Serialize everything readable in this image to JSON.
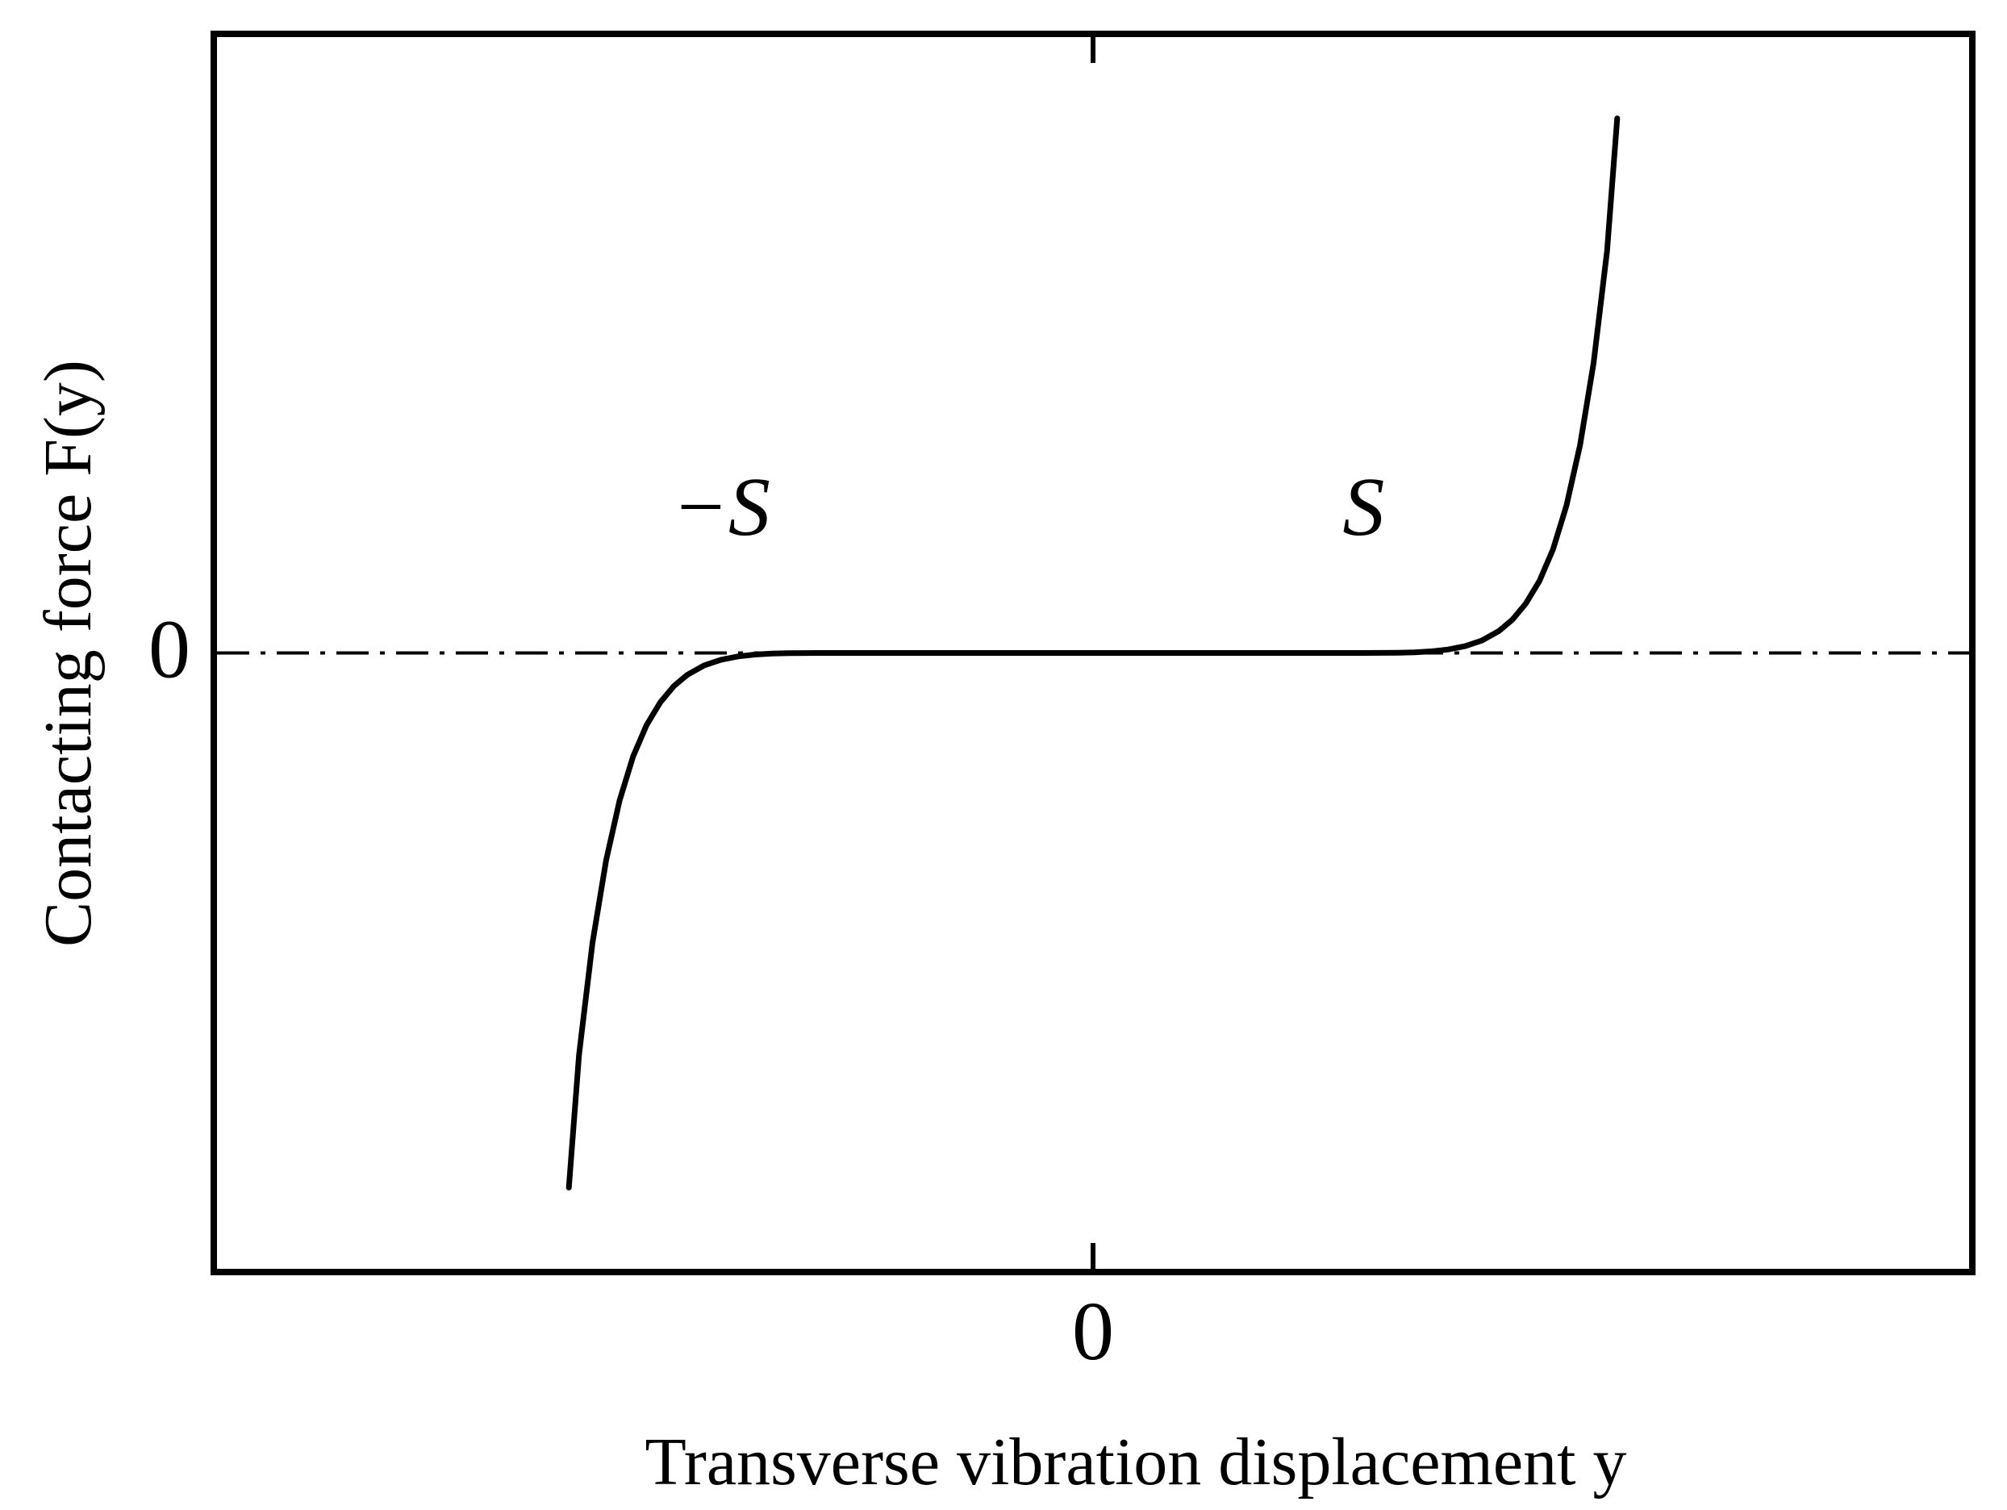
{
  "chart_data": {
    "type": "line",
    "title": "",
    "xlabel": "Transverse vibration displacement y",
    "ylabel": "Contacting force F(y)",
    "xlim": [
      -2.6,
      2.6
    ],
    "ylim": [
      -1.1,
      1.1
    ],
    "grid": false,
    "legend": "none",
    "x_ticks": [
      {
        "value": 0,
        "label": "0"
      }
    ],
    "y_ticks": [
      {
        "value": 0,
        "label": "0"
      }
    ],
    "reference_line": {
      "y": 0,
      "style": "dash-dot"
    },
    "annotations": [
      {
        "text": "−S",
        "x": -1.1,
        "y": 0.21
      },
      {
        "text": "S",
        "x": 0.8,
        "y": 0.21
      }
    ],
    "series": [
      {
        "x": [
          -1.55,
          -1.52,
          -1.48,
          -1.44,
          -1.4,
          -1.36,
          -1.32,
          -1.28,
          -1.24,
          -1.2,
          -1.15,
          -1.1,
          -1.05,
          -1.0,
          -0.95,
          -0.9,
          -0.85,
          -0.8,
          -0.75,
          -0.7,
          -0.65,
          -0.6,
          -0.5,
          -0.4,
          -0.3,
          -0.2,
          -0.1,
          0.0,
          0.1,
          0.2,
          0.3,
          0.4,
          0.5,
          0.6,
          0.65,
          0.7,
          0.75,
          0.8,
          0.85,
          0.9,
          0.95,
          1.0,
          1.05,
          1.1,
          1.15,
          1.2,
          1.24,
          1.28,
          1.32,
          1.36,
          1.4,
          1.44,
          1.48,
          1.52,
          1.55
        ],
        "y": [
          -0.95,
          -0.714,
          -0.515,
          -0.369,
          -0.262,
          -0.184,
          -0.128,
          -0.088,
          -0.059,
          -0.039,
          -0.022,
          -0.012,
          -0.0062,
          -0.0029,
          -0.0012,
          -0.0004,
          -0.00012,
          -3e-05,
          0,
          0,
          0,
          0,
          0,
          0,
          0,
          0,
          0,
          0,
          0,
          0,
          0,
          0,
          0,
          0,
          0,
          0,
          0,
          3e-05,
          0.00012,
          0.0004,
          0.0012,
          0.0029,
          0.0062,
          0.012,
          0.022,
          0.039,
          0.059,
          0.088,
          0.128,
          0.184,
          0.262,
          0.369,
          0.515,
          0.714,
          0.95
        ]
      }
    ]
  }
}
